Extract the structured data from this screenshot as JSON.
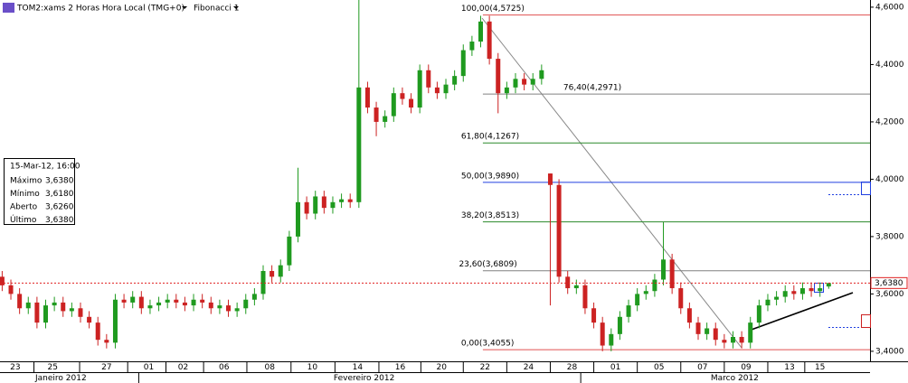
{
  "chart_data": {
    "type": "candlestick",
    "title": "TOM2:xams 2 Horas Hora Local (TMG+0)",
    "indicator": "Fibonacci 1",
    "x": [
      0,
      2,
      4,
      6,
      8,
      10,
      12,
      14,
      16,
      18,
      20,
      22,
      24,
      26,
      28,
      30,
      32,
      34,
      36,
      38,
      40,
      42,
      44,
      46,
      48,
      50,
      52,
      54,
      56,
      58,
      60,
      62,
      64,
      66,
      68,
      70,
      72,
      74,
      76,
      78,
      80,
      82,
      84,
      86,
      88,
      90,
      92,
      94,
      96,
      98,
      100,
      102,
      104,
      106,
      108,
      110,
      112,
      114,
      116,
      118,
      120,
      122,
      124,
      126,
      128,
      130,
      132,
      134,
      136,
      138,
      140,
      142,
      144,
      146,
      148,
      150,
      152,
      154,
      156,
      158,
      160,
      162,
      164,
      166,
      168,
      170,
      172,
      174,
      176,
      178,
      180,
      182,
      184,
      186,
      188,
      190
    ],
    "open": [
      3.66,
      3.63,
      3.6,
      3.55,
      3.57,
      3.5,
      3.56,
      3.57,
      3.54,
      3.55,
      3.52,
      3.5,
      3.44,
      3.43,
      3.58,
      3.57,
      3.59,
      3.55,
      3.56,
      3.57,
      3.58,
      3.57,
      3.56,
      3.58,
      3.57,
      3.55,
      3.56,
      3.54,
      3.55,
      3.58,
      3.6,
      3.68,
      3.66,
      3.7,
      3.8,
      3.92,
      3.88,
      3.94,
      3.9,
      3.92,
      3.93,
      3.92,
      4.32,
      4.25,
      4.2,
      4.22,
      4.3,
      4.28,
      4.25,
      4.38,
      4.32,
      4.3,
      4.33,
      4.36,
      4.45,
      4.48,
      4.55,
      4.42,
      4.3,
      4.32,
      4.35,
      4.33,
      4.35,
      4.02,
      3.98,
      3.66,
      3.62,
      3.63,
      3.55,
      3.5,
      3.42,
      3.46,
      3.52,
      3.56,
      3.6,
      3.61,
      3.65,
      3.72,
      3.62,
      3.55,
      3.5,
      3.46,
      3.48,
      3.44,
      3.43,
      3.45,
      3.43,
      3.5,
      3.56,
      3.58,
      3.59,
      3.61,
      3.6,
      3.62,
      3.61,
      3.626
    ],
    "high": [
      3.68,
      3.65,
      3.62,
      3.59,
      3.59,
      3.58,
      3.59,
      3.59,
      3.57,
      3.57,
      3.54,
      3.52,
      3.46,
      3.6,
      3.6,
      3.61,
      3.61,
      3.58,
      3.59,
      3.6,
      3.6,
      3.59,
      3.6,
      3.6,
      3.59,
      3.58,
      3.58,
      3.57,
      3.6,
      3.62,
      3.7,
      3.7,
      3.72,
      3.82,
      4.04,
      3.94,
      3.96,
      3.96,
      3.94,
      3.95,
      3.95,
      4.625,
      4.34,
      4.27,
      4.24,
      4.32,
      4.32,
      4.3,
      4.4,
      4.4,
      4.34,
      4.35,
      4.38,
      4.47,
      4.5,
      4.57,
      4.57,
      4.44,
      4.34,
      4.37,
      4.37,
      4.37,
      4.4,
      4.02,
      4.0,
      3.68,
      3.65,
      3.65,
      3.57,
      3.52,
      3.48,
      3.54,
      3.58,
      3.62,
      3.63,
      3.67,
      3.85,
      3.74,
      3.64,
      3.57,
      3.52,
      3.5,
      3.5,
      3.46,
      3.47,
      3.47,
      3.52,
      3.58,
      3.6,
      3.61,
      3.63,
      3.63,
      3.64,
      3.64,
      3.64,
      3.638
    ],
    "low": [
      3.61,
      3.58,
      3.53,
      3.53,
      3.48,
      3.48,
      3.54,
      3.52,
      3.52,
      3.5,
      3.48,
      3.42,
      3.41,
      3.41,
      3.55,
      3.55,
      3.53,
      3.53,
      3.54,
      3.55,
      3.55,
      3.54,
      3.54,
      3.55,
      3.53,
      3.53,
      3.52,
      3.52,
      3.53,
      3.56,
      3.58,
      3.64,
      3.64,
      3.68,
      3.78,
      3.86,
      3.86,
      3.88,
      3.88,
      3.9,
      3.9,
      3.9,
      4.23,
      4.15,
      4.18,
      4.2,
      4.26,
      4.23,
      4.23,
      4.3,
      4.28,
      4.28,
      4.31,
      4.34,
      4.43,
      4.46,
      4.4,
      4.23,
      4.28,
      4.3,
      4.31,
      4.31,
      4.33,
      3.56,
      3.64,
      3.6,
      3.6,
      3.53,
      3.48,
      3.4,
      3.4,
      3.44,
      3.5,
      3.54,
      3.58,
      3.59,
      3.63,
      3.6,
      3.53,
      3.48,
      3.44,
      3.44,
      3.42,
      3.41,
      3.41,
      3.41,
      3.41,
      3.48,
      3.54,
      3.56,
      3.57,
      3.58,
      3.58,
      3.59,
      3.59,
      3.618
    ],
    "close": [
      3.63,
      3.6,
      3.55,
      3.57,
      3.5,
      3.56,
      3.57,
      3.54,
      3.55,
      3.52,
      3.5,
      3.44,
      3.43,
      3.58,
      3.57,
      3.59,
      3.55,
      3.56,
      3.57,
      3.58,
      3.57,
      3.56,
      3.58,
      3.57,
      3.55,
      3.56,
      3.54,
      3.55,
      3.58,
      3.6,
      3.68,
      3.66,
      3.7,
      3.8,
      3.92,
      3.88,
      3.94,
      3.9,
      3.92,
      3.93,
      3.92,
      4.32,
      4.25,
      4.2,
      4.22,
      4.3,
      4.28,
      4.25,
      4.38,
      4.32,
      4.3,
      4.33,
      4.36,
      4.45,
      4.48,
      4.55,
      4.42,
      4.3,
      4.32,
      4.35,
      4.33,
      4.35,
      4.38,
      3.98,
      3.66,
      3.62,
      3.63,
      3.55,
      3.5,
      3.42,
      3.46,
      3.52,
      3.56,
      3.6,
      3.61,
      3.65,
      3.72,
      3.62,
      3.55,
      3.5,
      3.46,
      3.48,
      3.44,
      3.43,
      3.45,
      3.43,
      3.5,
      3.56,
      3.58,
      3.59,
      3.61,
      3.6,
      3.62,
      3.61,
      3.62,
      3.638
    ],
    "up_color": "#1f9a1f",
    "down_color": "#cc2222",
    "xlim": [
      -0.5,
      199.5
    ],
    "xticks": [
      {
        "value": 3,
        "label": "23"
      },
      {
        "value": 11.6,
        "label": "25"
      },
      {
        "value": 24,
        "label": "27"
      },
      {
        "value": 33.7,
        "label": "01"
      },
      {
        "value": 41.6,
        "label": "02"
      },
      {
        "value": 51,
        "label": "06"
      },
      {
        "value": 61.5,
        "label": "08"
      },
      {
        "value": 71.3,
        "label": "10"
      },
      {
        "value": 81.7,
        "label": "14"
      },
      {
        "value": 91.5,
        "label": "16"
      },
      {
        "value": 101,
        "label": "20"
      },
      {
        "value": 111,
        "label": "22"
      },
      {
        "value": 121,
        "label": "24"
      },
      {
        "value": 131,
        "label": "28"
      },
      {
        "value": 141,
        "label": "01"
      },
      {
        "value": 151,
        "label": "05"
      },
      {
        "value": 161,
        "label": "07"
      },
      {
        "value": 171,
        "label": "09"
      },
      {
        "value": 181,
        "label": "13"
      },
      {
        "value": 188,
        "label": "15"
      }
    ],
    "month_labels": [
      {
        "value": 13.5,
        "label": "Janeiro 2012"
      },
      {
        "value": 83.2,
        "label": "Fevereiro 2012"
      },
      {
        "value": 168.4,
        "label": "Marco 2012"
      }
    ],
    "month_bounds": [
      31.4,
      133
    ],
    "ylim": [
      3.365,
      4.625
    ],
    "yticks": [
      {
        "value": 3.4,
        "label": "3,4000"
      },
      {
        "value": 3.6,
        "label": "3,6000"
      },
      {
        "value": 3.8,
        "label": "3,8000"
      },
      {
        "value": 4.0,
        "label": "4,0000"
      },
      {
        "value": 4.2,
        "label": "4,2000"
      },
      {
        "value": 4.4,
        "label": "4,4000"
      },
      {
        "value": 4.6,
        "label": "4,6000"
      }
    ],
    "fibonacci": [
      {
        "value": 4.5725,
        "label": "100,00(4,5725)",
        "color": "#e05050",
        "x": 105.5
      },
      {
        "value": 4.2971,
        "label": "76,40(4,2971)",
        "color": "#808080",
        "x": 129
      },
      {
        "value": 4.1267,
        "label": "61,80(4,1267)",
        "color": "#2a8a2a",
        "x": 105.5
      },
      {
        "value": 3.989,
        "label": "50,00(3,9890)",
        "color": "#2040e0",
        "x": 105.5
      },
      {
        "value": 3.8513,
        "label": "38,20(3,8513)",
        "color": "#2a8a2a",
        "x": 105.5
      },
      {
        "value": 3.6809,
        "label": "23,60(3,6809)",
        "color": "#808080",
        "x": 105
      },
      {
        "value": 3.4055,
        "label": "0,00(3,4055)",
        "color": "#e05050",
        "x": 105.5
      }
    ],
    "fib_start": 110.5,
    "last_price": {
      "value": 3.638,
      "label": "3,6380"
    },
    "info": {
      "date": "15-Mar-12, 16:00",
      "rows": [
        {
          "label": "Máximo",
          "value": "3,6380"
        },
        {
          "label": "Mínimo",
          "value": "3,6180"
        },
        {
          "label": "Aberto",
          "value": "3,6260"
        },
        {
          "label": "Último",
          "value": "3,6380"
        }
      ]
    }
  }
}
